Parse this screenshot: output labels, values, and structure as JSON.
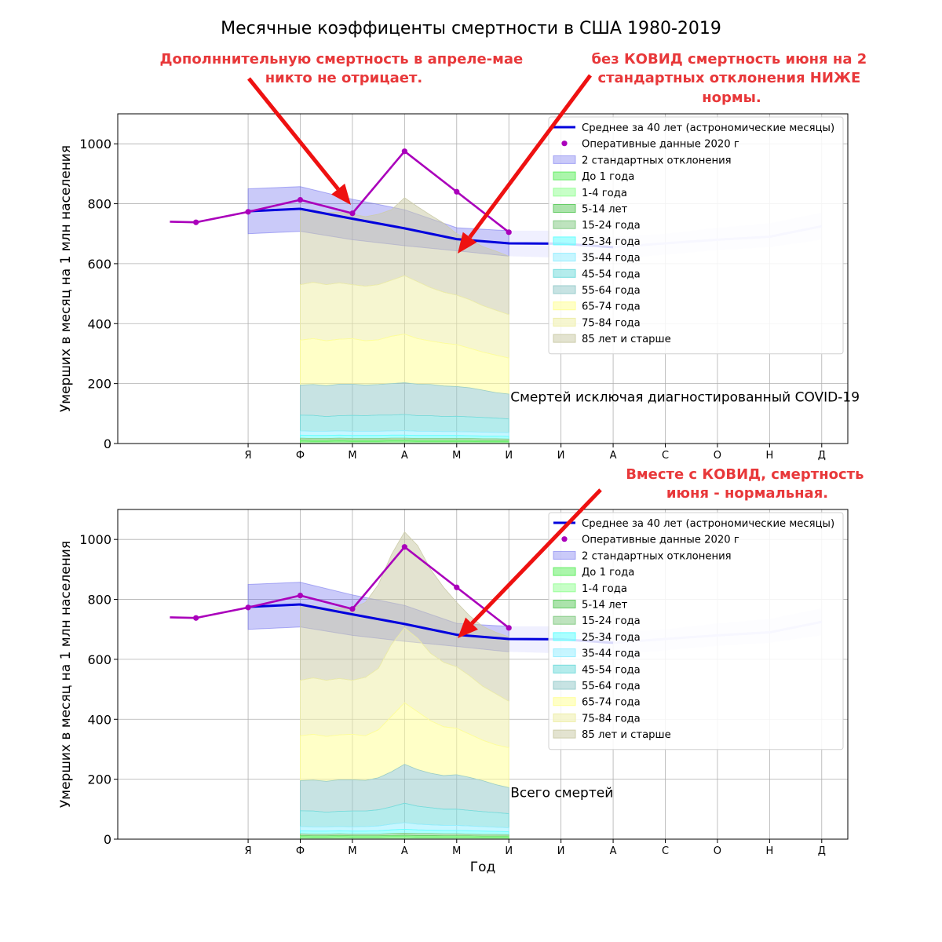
{
  "title": "Месячные коэффиценты смертности в США 1980-2019",
  "annotations": {
    "top_left": [
      "Дополннительную смертность в апреле-мае",
      "никто не отрицает."
    ],
    "top_right": [
      "без КОВИД смертность июня на 2",
      "стандартных отклонения НИЖЕ",
      "нормы."
    ],
    "bottom_right": [
      "Вместе с КОВИД, смертность",
      "июня - нормальная."
    ]
  },
  "colors": {
    "mean_line": "#0000dd",
    "oper_line": "#aa00bb",
    "std_band": "#6666ee",
    "std_band_future": "#ccccff",
    "annotation": "#e8383a",
    "arrow": "#ee1111"
  },
  "chart_data": [
    {
      "type": "area",
      "panel_label": "Смертей исключая диагностированный COVID-19",
      "ylabel": "Умерших в месяц на 1 млн населения",
      "xlabel": "",
      "ylim": [
        0,
        1100
      ],
      "yticks": [
        0,
        200,
        400,
        600,
        800,
        1000
      ],
      "month_labels": [
        "Я",
        "Ф",
        "М",
        "А",
        "М",
        "И",
        "И",
        "А",
        "С",
        "О",
        "Н",
        "Д"
      ],
      "grid": true,
      "legend_placement": "top-right",
      "legend": [
        "Среднее за 40 лет (астрономические месяцы)",
        "Оперативные данные 2020 г",
        "2 стандартных отклонения",
        "До 1 года",
        "1-4 года",
        "5-14 лет",
        "15-24 года",
        "25-34 года",
        "35-44 года",
        "45-54 года",
        "55-64 года",
        "65-74 года",
        "75-84 года",
        "85 лет и старше"
      ],
      "mean": {
        "x": [
          1,
          2,
          3,
          4,
          5,
          6,
          7,
          8,
          9,
          10,
          11,
          12
        ],
        "y": [
          775,
          783,
          750,
          718,
          682,
          668,
          667,
          655,
          668,
          680,
          690,
          725
        ]
      },
      "std_band": {
        "x": [
          1,
          2,
          3,
          4,
          5,
          6,
          7,
          8,
          9,
          10,
          11,
          12
        ],
        "upper": [
          850,
          857,
          815,
          780,
          720,
          710,
          710,
          690,
          700,
          720,
          735,
          770
        ],
        "lower": [
          700,
          708,
          680,
          660,
          643,
          625,
          620,
          615,
          630,
          645,
          655,
          680
        ]
      },
      "operational_2020": {
        "x": [
          -0.5,
          0,
          1,
          2,
          3,
          4,
          5,
          6
        ],
        "y": [
          740,
          738,
          773,
          813,
          768,
          975,
          840,
          705
        ]
      },
      "stack_x": [
        2,
        2.25,
        2.5,
        2.75,
        3,
        3.25,
        3.5,
        3.75,
        4,
        4.25,
        4.5,
        4.75,
        5,
        5.25,
        5.5,
        5.75,
        6
      ],
      "stack_cumulative": [
        {
          "name": "До 1 года",
          "color": "#66ee66",
          "values": [
            8,
            7,
            7,
            8,
            7,
            7,
            7,
            8,
            8,
            7,
            7,
            7,
            7,
            7,
            6,
            6,
            6
          ]
        },
        {
          "name": "1-4 года",
          "color": "#99ff99",
          "values": [
            10,
            9,
            9,
            10,
            9,
            9,
            9,
            10,
            10,
            9,
            9,
            9,
            9,
            9,
            8,
            8,
            8
          ]
        },
        {
          "name": "5-14 лет",
          "color": "#66cc66",
          "values": [
            12,
            11,
            11,
            12,
            11,
            11,
            11,
            12,
            12,
            11,
            11,
            11,
            11,
            11,
            10,
            10,
            10
          ]
        },
        {
          "name": "15-24 года",
          "color": "#88cc88",
          "values": [
            18,
            17,
            17,
            18,
            17,
            17,
            17,
            18,
            18,
            17,
            17,
            17,
            17,
            17,
            16,
            16,
            15
          ]
        },
        {
          "name": "25-34 года",
          "color": "#66ffff",
          "values": [
            28,
            27,
            27,
            28,
            27,
            27,
            27,
            28,
            28,
            27,
            27,
            27,
            27,
            26,
            25,
            25,
            24
          ]
        },
        {
          "name": "35-44 года",
          "color": "#99eeff",
          "values": [
            42,
            41,
            41,
            42,
            41,
            41,
            41,
            42,
            43,
            41,
            41,
            40,
            40,
            39,
            38,
            37,
            36
          ]
        },
        {
          "name": "45-54 года",
          "color": "#77dddd",
          "values": [
            95,
            94,
            90,
            93,
            94,
            93,
            95,
            95,
            97,
            93,
            93,
            90,
            91,
            89,
            87,
            85,
            82
          ]
        },
        {
          "name": "55-64 года",
          "color": "#99cccc",
          "values": [
            195,
            197,
            193,
            198,
            198,
            195,
            197,
            200,
            203,
            198,
            197,
            192,
            190,
            186,
            178,
            170,
            165
          ]
        },
        {
          "name": "65-74 года",
          "color": "#ffff99",
          "values": [
            345,
            350,
            343,
            348,
            350,
            343,
            346,
            358,
            365,
            350,
            342,
            335,
            330,
            318,
            305,
            295,
            285
          ]
        },
        {
          "name": "75-84 года",
          "color": "#eeeeaa",
          "values": [
            530,
            538,
            530,
            536,
            530,
            525,
            530,
            545,
            560,
            540,
            520,
            505,
            495,
            480,
            460,
            445,
            430
          ]
        },
        {
          "name": "85 лет и старше",
          "color": "#ccccaa",
          "values": [
            775,
            780,
            770,
            772,
            765,
            757,
            765,
            780,
            820,
            790,
            762,
            735,
            700,
            680,
            657,
            642,
            625
          ]
        }
      ]
    },
    {
      "type": "area",
      "panel_label": "Всего смертей",
      "ylabel": "Умерших в месяц на 1 млн населения",
      "xlabel": "Год",
      "ylim": [
        0,
        1100
      ],
      "yticks": [
        0,
        200,
        400,
        600,
        800,
        1000
      ],
      "month_labels": [
        "Я",
        "Ф",
        "М",
        "А",
        "М",
        "И",
        "И",
        "А",
        "С",
        "О",
        "Н",
        "Д"
      ],
      "grid": true,
      "legend_placement": "top-right",
      "legend": [
        "Среднее за 40 лет (астрономические месяцы)",
        "Оперативные данные 2020 г",
        "2 стандартных отклонения",
        "До 1 года",
        "1-4 года",
        "5-14 лет",
        "15-24 года",
        "25-34 года",
        "35-44 года",
        "45-54 года",
        "55-64 года",
        "65-74 года",
        "75-84 года",
        "85 лет и старше"
      ],
      "mean": {
        "x": [
          1,
          2,
          3,
          4,
          5,
          6,
          7,
          8,
          9,
          10,
          11,
          12
        ],
        "y": [
          775,
          783,
          750,
          718,
          682,
          668,
          667,
          655,
          668,
          680,
          690,
          725
        ]
      },
      "std_band": {
        "x": [
          1,
          2,
          3,
          4,
          5,
          6,
          7,
          8,
          9,
          10,
          11,
          12
        ],
        "upper": [
          850,
          857,
          815,
          780,
          720,
          710,
          710,
          690,
          700,
          720,
          735,
          770
        ],
        "lower": [
          700,
          708,
          680,
          660,
          643,
          625,
          620,
          615,
          630,
          645,
          655,
          680
        ]
      },
      "operational_2020": {
        "x": [
          -0.5,
          0,
          1,
          2,
          3,
          4,
          5,
          6
        ],
        "y": [
          740,
          738,
          773,
          813,
          768,
          975,
          840,
          705
        ]
      },
      "stack_x": [
        2,
        2.25,
        2.5,
        2.75,
        3,
        3.25,
        3.5,
        3.75,
        4,
        4.25,
        4.5,
        4.75,
        5,
        5.25,
        5.5,
        5.75,
        6
      ],
      "stack_cumulative": [
        {
          "name": "До 1 года",
          "color": "#66ee66",
          "values": [
            8,
            7,
            7,
            8,
            7,
            7,
            7,
            8,
            8,
            7,
            7,
            7,
            7,
            7,
            6,
            6,
            6
          ]
        },
        {
          "name": "1-4 года",
          "color": "#99ff99",
          "values": [
            10,
            9,
            9,
            10,
            9,
            9,
            9,
            10,
            10,
            9,
            9,
            9,
            9,
            9,
            8,
            8,
            8
          ]
        },
        {
          "name": "5-14 лет",
          "color": "#66cc66",
          "values": [
            12,
            11,
            11,
            12,
            11,
            11,
            11,
            12,
            13,
            12,
            12,
            11,
            11,
            11,
            10,
            10,
            10
          ]
        },
        {
          "name": "15-24 года",
          "color": "#88cc88",
          "values": [
            18,
            17,
            17,
            18,
            17,
            17,
            17,
            19,
            20,
            19,
            19,
            18,
            18,
            17,
            16,
            16,
            15
          ]
        },
        {
          "name": "25-34 года",
          "color": "#66ffff",
          "values": [
            28,
            27,
            27,
            28,
            27,
            27,
            28,
            31,
            33,
            31,
            30,
            29,
            29,
            28,
            27,
            26,
            25
          ]
        },
        {
          "name": "35-44 года",
          "color": "#99eeff",
          "values": [
            42,
            41,
            41,
            42,
            41,
            42,
            44,
            50,
            55,
            50,
            48,
            46,
            46,
            44,
            42,
            40,
            38
          ]
        },
        {
          "name": "45-54 года",
          "color": "#77dddd",
          "values": [
            95,
            94,
            90,
            93,
            94,
            94,
            98,
            108,
            120,
            110,
            105,
            100,
            100,
            96,
            92,
            89,
            85
          ]
        },
        {
          "name": "55-64 года",
          "color": "#99cccc",
          "values": [
            195,
            197,
            193,
            198,
            198,
            196,
            205,
            225,
            250,
            232,
            220,
            212,
            215,
            206,
            195,
            182,
            172
          ]
        },
        {
          "name": "65-74 года",
          "color": "#ffff99",
          "values": [
            345,
            350,
            343,
            348,
            350,
            345,
            365,
            410,
            455,
            425,
            395,
            375,
            370,
            350,
            330,
            315,
            305
          ]
        },
        {
          "name": "75-84 года",
          "color": "#eeeeaa",
          "values": [
            530,
            538,
            530,
            536,
            530,
            540,
            570,
            650,
            705,
            670,
            620,
            590,
            575,
            545,
            510,
            485,
            460
          ]
        },
        {
          "name": "85 лет и старше",
          "color": "#ccccaa",
          "values": [
            775,
            780,
            770,
            772,
            770,
            790,
            850,
            950,
            1025,
            980,
            900,
            840,
            790,
            745,
            710,
            690,
            675
          ]
        }
      ]
    }
  ]
}
